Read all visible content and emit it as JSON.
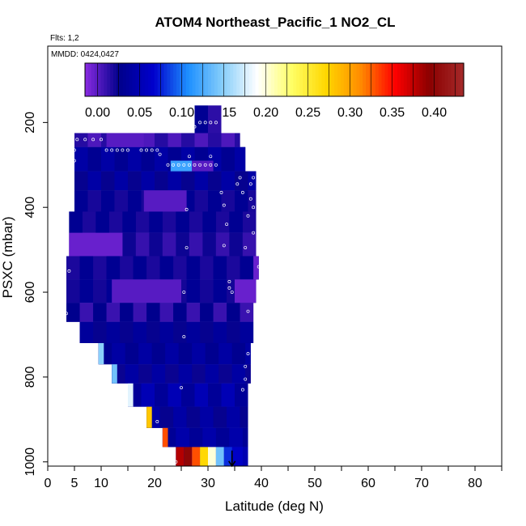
{
  "chart_data": {
    "type": "heatmap",
    "title": "ATOM4 Northeast_Pacific_1 NO2_CL",
    "flights_label": "Flts: 1,2",
    "mmdd_label": "MMDD: 0424,0427",
    "xlabel": "Latitude (deg N)",
    "ylabel": "PSXC (mbar)",
    "xlim": [
      0,
      85
    ],
    "ylim": [
      1010,
      20
    ],
    "y_reversed": true,
    "x_ticks": [
      0,
      5,
      10,
      20,
      30,
      40,
      50,
      60,
      70,
      80
    ],
    "x_minor_ticks": [
      15,
      25,
      35,
      45,
      55,
      65,
      75,
      85
    ],
    "y_ticks": [
      200,
      400,
      600,
      800,
      1000
    ],
    "colorbar": {
      "range": [
        -0.015,
        0.435
      ],
      "ticks": [
        0.0,
        0.05,
        0.1,
        0.15,
        0.2,
        0.25,
        0.3,
        0.35,
        0.4
      ],
      "tick_labels": [
        "0.00",
        "0.05",
        "0.10",
        "0.15",
        "0.20",
        "0.25",
        "0.30",
        "0.35",
        "0.40"
      ],
      "colors": [
        "#8a2be2",
        "#00008b",
        "#0000cd",
        "#1e90ff",
        "#87cefa",
        "#ffffff",
        "#ffff66",
        "#ffd700",
        "#ff8c00",
        "#ff0000",
        "#8b0000",
        "#a52a2a"
      ]
    },
    "rows": [
      {
        "p_top": 160,
        "p_bot": 225,
        "lat_min": 27.5,
        "lat_max": 32.5,
        "value": 0.025
      },
      {
        "p_top": 225,
        "p_bot": 258,
        "lat_min": 5.0,
        "lat_max": 36.0,
        "value": 0.015
      },
      {
        "p_top": 258,
        "p_bot": 315,
        "lat_min": 5.0,
        "lat_max": 37.0,
        "value": 0.03
      },
      {
        "p_top": 315,
        "p_bot": 360,
        "lat_min": 5.0,
        "lat_max": 39.0,
        "value": 0.03
      },
      {
        "p_top": 360,
        "p_bot": 410,
        "lat_min": 5.0,
        "lat_max": 39.0,
        "value": 0.025
      },
      {
        "p_top": 410,
        "p_bot": 460,
        "lat_min": 4.0,
        "lat_max": 39.0,
        "value": 0.03
      },
      {
        "p_top": 460,
        "p_bot": 515,
        "lat_min": 4.0,
        "lat_max": 39.0,
        "value": 0.01
      },
      {
        "p_top": 515,
        "p_bot": 570,
        "lat_min": 3.5,
        "lat_max": 39.5,
        "value": 0.03
      },
      {
        "p_top": 570,
        "p_bot": 625,
        "lat_min": 3.5,
        "lat_max": 39.0,
        "value": 0.02
      },
      {
        "p_top": 625,
        "p_bot": 670,
        "lat_min": 3.5,
        "lat_max": 38.5,
        "value": 0.015
      },
      {
        "p_top": 670,
        "p_bot": 720,
        "lat_min": 6.0,
        "lat_max": 38.5,
        "value": 0.03
      },
      {
        "p_top": 720,
        "p_bot": 770,
        "lat_min": 9.5,
        "lat_max": 38.0,
        "value": 0.035
      },
      {
        "p_top": 770,
        "p_bot": 815,
        "lat_min": 12.0,
        "lat_max": 38.0,
        "value": 0.035
      },
      {
        "p_top": 815,
        "p_bot": 870,
        "lat_min": 15.0,
        "lat_max": 37.5,
        "value": 0.04
      },
      {
        "p_top": 870,
        "p_bot": 920,
        "lat_min": 18.5,
        "lat_max": 37.5,
        "value": 0.03
      },
      {
        "p_top": 920,
        "p_bot": 965,
        "lat_min": 21.5,
        "lat_max": 37.5,
        "value": 0.045
      },
      {
        "p_top": 965,
        "p_bot": 1010,
        "lat_min": 24.0,
        "lat_max": 37.5,
        "value": 0.05
      }
    ],
    "edge_cells": [
      {
        "p_top": 720,
        "p_bot": 770,
        "lat_min": 9.5,
        "lat_max": 10.5,
        "value": 0.15
      },
      {
        "p_top": 770,
        "p_bot": 815,
        "lat_min": 12.0,
        "lat_max": 13.0,
        "value": 0.14
      },
      {
        "p_top": 815,
        "p_bot": 870,
        "lat_min": 15.0,
        "lat_max": 16.0,
        "value": 0.18
      },
      {
        "p_top": 870,
        "p_bot": 920,
        "lat_min": 18.5,
        "lat_max": 19.5,
        "value": 0.28
      },
      {
        "p_top": 920,
        "p_bot": 965,
        "lat_min": 21.5,
        "lat_max": 22.5,
        "value": 0.33
      },
      {
        "p_top": 965,
        "p_bot": 1010,
        "lat_min": 24.0,
        "lat_max": 25.5,
        "value": 0.38
      },
      {
        "p_top": 965,
        "p_bot": 1010,
        "lat_min": 25.5,
        "lat_max": 27.0,
        "value": 0.4
      },
      {
        "p_top": 965,
        "p_bot": 1010,
        "lat_min": 27.0,
        "lat_max": 28.5,
        "value": 0.33
      },
      {
        "p_top": 965,
        "p_bot": 1010,
        "lat_min": 28.5,
        "lat_max": 30.0,
        "value": 0.27
      },
      {
        "p_top": 965,
        "p_bot": 1010,
        "lat_min": 30.0,
        "lat_max": 31.5,
        "value": 0.2
      },
      {
        "p_top": 965,
        "p_bot": 1010,
        "lat_min": 31.5,
        "lat_max": 33.0,
        "value": 0.14
      },
      {
        "p_top": 965,
        "p_bot": 1010,
        "lat_min": 33.0,
        "lat_max": 34.5,
        "value": 0.08
      },
      {
        "p_top": 225,
        "p_bot": 258,
        "lat_min": 11.0,
        "lat_max": 18.0,
        "value": 0.0
      },
      {
        "p_top": 290,
        "p_bot": 315,
        "lat_min": 23.0,
        "lat_max": 27.0,
        "value": 0.12
      },
      {
        "p_top": 290,
        "p_bot": 315,
        "lat_min": 27.0,
        "lat_max": 31.0,
        "value": 0.0
      },
      {
        "p_top": 360,
        "p_bot": 410,
        "lat_min": 18.0,
        "lat_max": 26.0,
        "value": 0.0
      },
      {
        "p_top": 460,
        "p_bot": 515,
        "lat_min": 4.0,
        "lat_max": 14.0,
        "value": -0.005
      },
      {
        "p_top": 570,
        "p_bot": 625,
        "lat_min": 12.0,
        "lat_max": 25.0,
        "value": 0.0
      },
      {
        "p_top": 570,
        "p_bot": 625,
        "lat_min": 35.0,
        "lat_max": 39.0,
        "value": -0.005
      },
      {
        "p_top": 515,
        "p_bot": 570,
        "lat_min": 38.5,
        "lat_max": 39.5,
        "value": -0.005
      }
    ],
    "flight_points": [
      {
        "lat": 28.5,
        "p": 200
      },
      {
        "lat": 29.5,
        "p": 200
      },
      {
        "lat": 30.5,
        "p": 200
      },
      {
        "lat": 31.5,
        "p": 200
      },
      {
        "lat": 27.5,
        "p": 210
      },
      {
        "lat": 5.5,
        "p": 240
      },
      {
        "lat": 7.0,
        "p": 240
      },
      {
        "lat": 8.5,
        "p": 240
      },
      {
        "lat": 10.0,
        "p": 240
      },
      {
        "lat": 5.0,
        "p": 265
      },
      {
        "lat": 11.0,
        "p": 265
      },
      {
        "lat": 12.0,
        "p": 265
      },
      {
        "lat": 13.0,
        "p": 265
      },
      {
        "lat": 14.0,
        "p": 265
      },
      {
        "lat": 15.0,
        "p": 265
      },
      {
        "lat": 17.5,
        "p": 265
      },
      {
        "lat": 18.5,
        "p": 265
      },
      {
        "lat": 19.5,
        "p": 265
      },
      {
        "lat": 20.5,
        "p": 265
      },
      {
        "lat": 21.0,
        "p": 275
      },
      {
        "lat": 5.0,
        "p": 290
      },
      {
        "lat": 22.5,
        "p": 300
      },
      {
        "lat": 23.5,
        "p": 300
      },
      {
        "lat": 24.5,
        "p": 300
      },
      {
        "lat": 25.5,
        "p": 300
      },
      {
        "lat": 26.5,
        "p": 300
      },
      {
        "lat": 27.5,
        "p": 300
      },
      {
        "lat": 28.5,
        "p": 300
      },
      {
        "lat": 29.5,
        "p": 300
      },
      {
        "lat": 30.5,
        "p": 300
      },
      {
        "lat": 31.5,
        "p": 300
      },
      {
        "lat": 26.5,
        "p": 280
      },
      {
        "lat": 30.5,
        "p": 280
      },
      {
        "lat": 36.0,
        "p": 330
      },
      {
        "lat": 38.5,
        "p": 330
      },
      {
        "lat": 35.5,
        "p": 345
      },
      {
        "lat": 38.0,
        "p": 345
      },
      {
        "lat": 32.5,
        "p": 365
      },
      {
        "lat": 36.5,
        "p": 365
      },
      {
        "lat": 38.0,
        "p": 380
      },
      {
        "lat": 33.0,
        "p": 395
      },
      {
        "lat": 38.5,
        "p": 400
      },
      {
        "lat": 26.0,
        "p": 405
      },
      {
        "lat": 37.5,
        "p": 420
      },
      {
        "lat": 33.5,
        "p": 440
      },
      {
        "lat": 38.5,
        "p": 460
      },
      {
        "lat": 33.0,
        "p": 490
      },
      {
        "lat": 26.0,
        "p": 495
      },
      {
        "lat": 37.0,
        "p": 495
      },
      {
        "lat": 39.5,
        "p": 540
      },
      {
        "lat": 4.0,
        "p": 550
      },
      {
        "lat": 34.0,
        "p": 575
      },
      {
        "lat": 34.0,
        "p": 590
      },
      {
        "lat": 25.5,
        "p": 600
      },
      {
        "lat": 34.5,
        "p": 600
      },
      {
        "lat": 37.5,
        "p": 645
      },
      {
        "lat": 3.5,
        "p": 650
      },
      {
        "lat": 25.5,
        "p": 705
      },
      {
        "lat": 37.5,
        "p": 745
      },
      {
        "lat": 37.0,
        "p": 775
      },
      {
        "lat": 37.0,
        "p": 805
      },
      {
        "lat": 25.0,
        "p": 825
      },
      {
        "lat": 36.5,
        "p": 830
      },
      {
        "lat": 20.5,
        "p": 905
      },
      {
        "lat": 24.0,
        "p": 1000
      }
    ],
    "arrow_marker": {
      "lat": 34.5,
      "p": 1000
    }
  }
}
